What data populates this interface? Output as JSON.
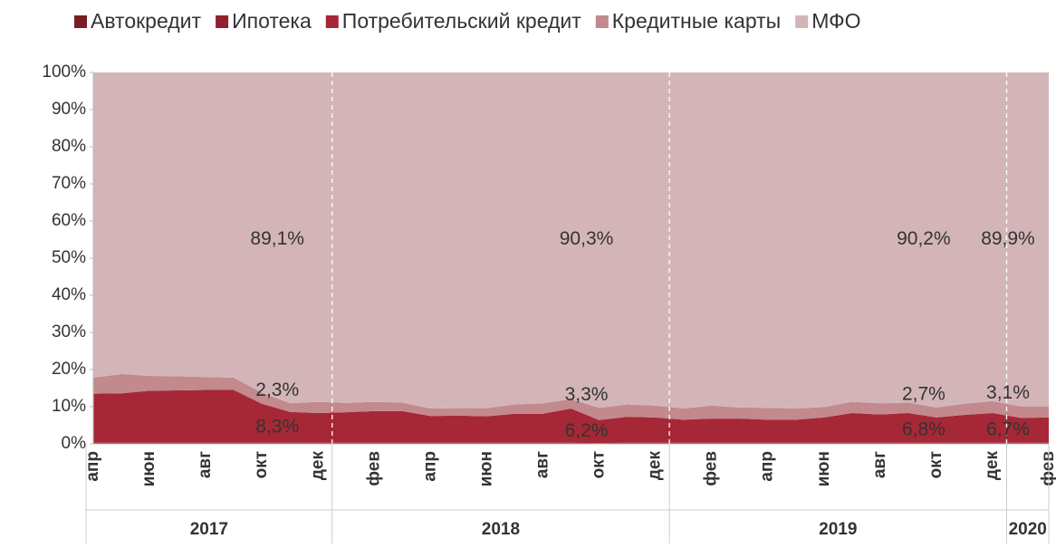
{
  "chart_data": {
    "type": "stacked_area_100",
    "categories": [
      "апр",
      null,
      "июн",
      null,
      "авг",
      null,
      "окт",
      null,
      "дек",
      null,
      "фев",
      null,
      "апр",
      null,
      "июн",
      null,
      "авг",
      null,
      "окт",
      null,
      "дек",
      null,
      "фев",
      null,
      "апр",
      null,
      "июн",
      null,
      "авг",
      null,
      "окт",
      null,
      "дек",
      null,
      "фев"
    ],
    "year_groups": [
      {
        "label": "2017",
        "count": 9
      },
      {
        "label": "2018",
        "count": 12
      },
      {
        "label": "2019",
        "count": 12
      },
      {
        "label": "2020",
        "count": 2
      }
    ],
    "series": [
      {
        "name": "Автокредит",
        "color": "#7a1c26",
        "values": [
          0.1,
          0.1,
          0.1,
          0.1,
          0.1,
          0.1,
          0.1,
          0.1,
          0.1,
          0.1,
          0.1,
          0.1,
          0.1,
          0.1,
          0.1,
          0.1,
          0.1,
          0.1,
          0.1,
          0.1,
          0.1,
          0.1,
          0.1,
          0.1,
          0.1,
          0.1,
          0.1,
          0.1,
          0.1,
          0.1,
          0.1,
          0.1,
          0.1,
          0.1,
          0.1
        ]
      },
      {
        "name": "Ипотека",
        "color": "#94202f",
        "values": [
          0.2,
          0.2,
          0.2,
          0.2,
          0.2,
          0.2,
          0.2,
          0.2,
          0.2,
          0.2,
          0.2,
          0.2,
          0.2,
          0.2,
          0.2,
          0.2,
          0.2,
          0.2,
          0.1,
          0.2,
          0.2,
          0.2,
          0.2,
          0.2,
          0.2,
          0.2,
          0.2,
          0.2,
          0.2,
          0.2,
          0.2,
          0.2,
          0.2,
          0.2,
          0.2
        ]
      },
      {
        "name": "Потребительский кредит",
        "color": "#a62836",
        "values": [
          13.2,
          13.3,
          14.0,
          14.1,
          14.2,
          14.2,
          10.5,
          8.3,
          8.0,
          8.2,
          8.5,
          8.5,
          7.2,
          7.3,
          7.1,
          7.8,
          7.8,
          9.2,
          6.2,
          7.0,
          6.8,
          6.2,
          6.5,
          6.5,
          6.2,
          6.2,
          6.8,
          8.0,
          7.6,
          8.0,
          6.8,
          7.5,
          8.0,
          6.7,
          6.8
        ],
        "value_labels": [
          null,
          null,
          null,
          null,
          null,
          null,
          null,
          "8,3%",
          null,
          null,
          null,
          null,
          null,
          null,
          null,
          null,
          null,
          null,
          "6,2%",
          null,
          null,
          null,
          null,
          null,
          null,
          null,
          null,
          null,
          null,
          null,
          "6,8%",
          null,
          null,
          "6,7%",
          null
        ]
      },
      {
        "name": "Кредитные карты",
        "color": "#c2898e",
        "values": [
          4.3,
          5.2,
          4.0,
          3.8,
          3.5,
          3.3,
          3.0,
          2.3,
          3.0,
          2.5,
          2.5,
          2.3,
          2.0,
          2.0,
          2.2,
          2.5,
          2.8,
          2.5,
          3.3,
          3.3,
          3.2,
          3.0,
          3.5,
          3.0,
          3.2,
          3.0,
          2.8,
          3.0,
          3.0,
          2.8,
          2.7,
          3.0,
          3.2,
          3.1,
          3.0
        ],
        "value_labels": [
          null,
          null,
          null,
          null,
          null,
          null,
          null,
          "2,3%",
          null,
          null,
          null,
          null,
          null,
          null,
          null,
          null,
          null,
          null,
          "3,3%",
          null,
          null,
          null,
          null,
          null,
          null,
          null,
          null,
          null,
          null,
          null,
          "2,7%",
          null,
          null,
          "3,1%",
          null
        ]
      },
      {
        "name": "МФО",
        "color": "#d3b5b8",
        "values": [
          82.2,
          81.2,
          81.7,
          81.8,
          82.0,
          82.2,
          86.2,
          89.1,
          88.7,
          89.0,
          88.7,
          88.9,
          90.5,
          90.4,
          90.4,
          89.4,
          89.1,
          88.0,
          90.3,
          89.4,
          89.7,
          90.5,
          89.7,
          90.2,
          90.3,
          90.5,
          90.1,
          88.7,
          89.1,
          88.9,
          90.2,
          89.2,
          88.5,
          89.9,
          89.9
        ],
        "value_labels": [
          null,
          null,
          null,
          null,
          null,
          null,
          null,
          "89,1%",
          null,
          null,
          null,
          null,
          null,
          null,
          null,
          null,
          null,
          null,
          "90,3%",
          null,
          null,
          null,
          null,
          null,
          null,
          null,
          null,
          null,
          null,
          null,
          "90,2%",
          null,
          null,
          "89,9%",
          null
        ]
      }
    ],
    "ylim": [
      0,
      100
    ],
    "yticks": [
      {
        "value": 0,
        "label": "0%"
      },
      {
        "value": 10,
        "label": "10%"
      },
      {
        "value": 20,
        "label": "20%"
      },
      {
        "value": 30,
        "label": "30%"
      },
      {
        "value": 40,
        "label": "40%"
      },
      {
        "value": 50,
        "label": "50%"
      },
      {
        "value": 60,
        "label": "60%"
      },
      {
        "value": 70,
        "label": "70%"
      },
      {
        "value": 80,
        "label": "80%"
      },
      {
        "value": 90,
        "label": "90%"
      },
      {
        "value": 100,
        "label": "100%"
      }
    ],
    "legend": "top"
  }
}
